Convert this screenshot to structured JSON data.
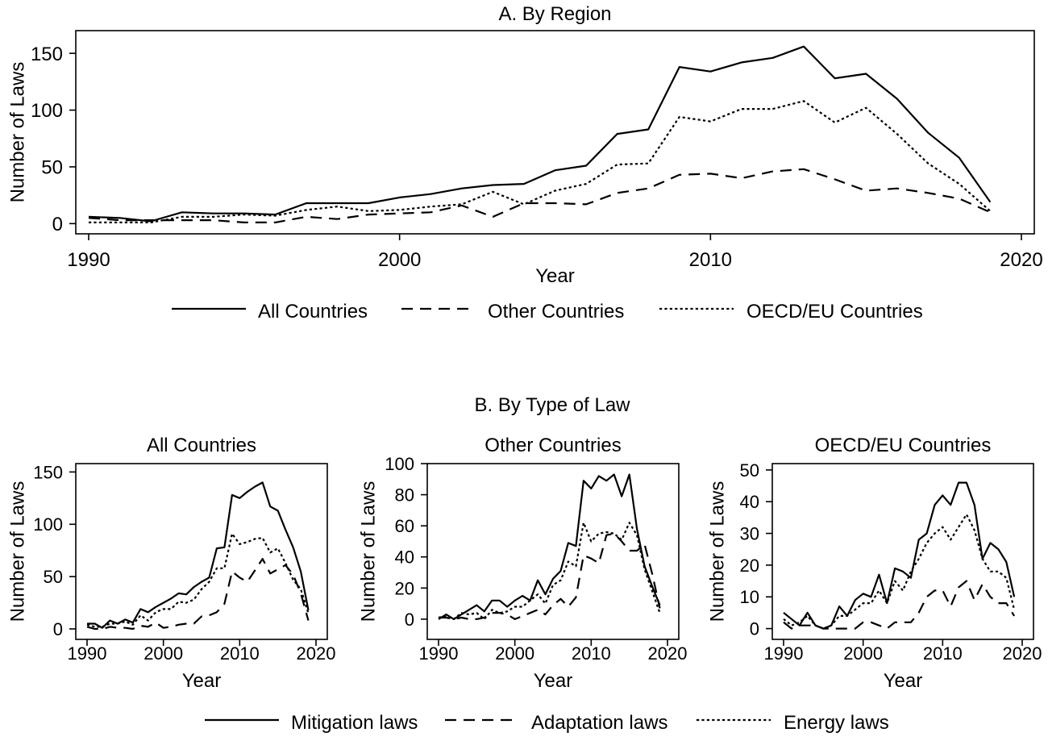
{
  "styles": {
    "solid": "",
    "dashed": "14 9",
    "dotted": "3.2 3.2"
  },
  "legend_a": [
    {
      "label": "All Countries",
      "style": "solid"
    },
    {
      "label": "Other Countries",
      "style": "dashed"
    },
    {
      "label": "OECD/EU Countries",
      "style": "dotted"
    }
  ],
  "legend_b": [
    {
      "label": "Mitigation laws",
      "style": "solid"
    },
    {
      "label": "Adaptation laws",
      "style": "dashed"
    },
    {
      "label": "Energy laws",
      "style": "dotted"
    }
  ],
  "section_b_title": "B. By Type of Law",
  "chart_data": [
    {
      "id": "by-region",
      "type": "line",
      "title": "A. By Region",
      "xlabel": "Year",
      "ylabel": "Number of Laws",
      "xlim": [
        1990,
        2020
      ],
      "xticks": [
        1990,
        2000,
        2010,
        2020
      ],
      "ylim": [
        -9,
        170
      ],
      "yticks": [
        0,
        50,
        100,
        150
      ],
      "x": [
        1990,
        1991,
        1992,
        1993,
        1994,
        1995,
        1996,
        1997,
        1998,
        1999,
        2000,
        2001,
        2002,
        2003,
        2004,
        2005,
        2006,
        2007,
        2008,
        2009,
        2010,
        2011,
        2012,
        2013,
        2014,
        2015,
        2016,
        2017,
        2018,
        2019
      ],
      "series": [
        {
          "name": "All Countries",
          "style": "solid",
          "values": [
            6,
            5,
            2,
            10,
            9,
            9,
            8,
            18,
            18,
            18,
            23,
            26,
            31,
            34,
            35,
            47,
            51,
            79,
            83,
            138,
            134,
            142,
            146,
            156,
            128,
            132,
            110,
            80,
            58,
            19
          ]
        },
        {
          "name": "Other Countries",
          "style": "dashed",
          "values": [
            5,
            3,
            3,
            3,
            3,
            1,
            1,
            6,
            4,
            8,
            9,
            10,
            16,
            6,
            18,
            18,
            17,
            27,
            31,
            43,
            44,
            40,
            46,
            48,
            39,
            29,
            31,
            27,
            22,
            10
          ]
        },
        {
          "name": "OECD/EU Countries",
          "style": "dotted",
          "values": [
            1,
            1,
            1,
            6,
            6,
            8,
            7,
            12,
            15,
            11,
            12,
            15,
            17,
            28,
            17,
            29,
            35,
            52,
            53,
            94,
            90,
            101,
            101,
            108,
            89,
            102,
            79,
            53,
            35,
            11
          ]
        }
      ]
    },
    {
      "id": "by-type-all",
      "type": "line",
      "title": "All Countries",
      "xlabel": "Year",
      "ylabel": "Number of Laws",
      "xlim": [
        1990,
        2020
      ],
      "xticks": [
        1990,
        2000,
        2010,
        2020
      ],
      "ylim": [
        -10,
        158
      ],
      "yticks": [
        0,
        50,
        100,
        150
      ],
      "x": [
        1990,
        1991,
        1992,
        1993,
        1994,
        1995,
        1996,
        1997,
        1998,
        1999,
        2000,
        2001,
        2002,
        2003,
        2004,
        2005,
        2006,
        2007,
        2008,
        2009,
        2010,
        2011,
        2012,
        2013,
        2014,
        2015,
        2016,
        2017,
        2018,
        2019
      ],
      "series": [
        {
          "name": "Mitigation laws",
          "style": "solid",
          "values": [
            5,
            5,
            1,
            8,
            5,
            9,
            6,
            19,
            16,
            21,
            25,
            29,
            34,
            33,
            40,
            45,
            49,
            77,
            78,
            128,
            125,
            131,
            136,
            140,
            117,
            113,
            95,
            78,
            55,
            18
          ]
        },
        {
          "name": "Adaptation laws",
          "style": "dashed",
          "values": [
            2,
            0,
            0,
            2,
            1,
            1,
            0,
            3,
            2,
            6,
            1,
            2,
            4,
            5,
            5,
            12,
            13,
            16,
            24,
            55,
            49,
            45,
            56,
            67,
            53,
            57,
            61,
            52,
            34,
            8
          ]
        },
        {
          "name": "Energy laws",
          "style": "dotted",
          "values": [
            4,
            2,
            2,
            5,
            5,
            7,
            4,
            13,
            8,
            16,
            19,
            19,
            26,
            25,
            28,
            38,
            45,
            58,
            58,
            91,
            81,
            83,
            86,
            87,
            73,
            77,
            63,
            47,
            38,
            15
          ]
        }
      ]
    },
    {
      "id": "by-type-other",
      "type": "line",
      "title": "Other Countries",
      "xlabel": "Year",
      "ylabel": "Number of Laws",
      "xlim": [
        1990,
        2020
      ],
      "xticks": [
        1990,
        2000,
        2010,
        2020
      ],
      "ylim": [
        -13,
        100
      ],
      "yticks": [
        0,
        20,
        40,
        60,
        80,
        100
      ],
      "x": [
        1990,
        1991,
        1992,
        1993,
        1994,
        1995,
        1996,
        1997,
        1998,
        1999,
        2000,
        2001,
        2002,
        2003,
        2004,
        2005,
        2006,
        2007,
        2008,
        2009,
        2010,
        2011,
        2012,
        2013,
        2014,
        2015,
        2016,
        2017,
        2018,
        2019
      ],
      "series": [
        {
          "name": "Mitigation laws",
          "style": "solid",
          "values": [
            0,
            3,
            0,
            3,
            6,
            9,
            5,
            12,
            12,
            8,
            12,
            15,
            12,
            25,
            16,
            26,
            31,
            49,
            47,
            89,
            84,
            92,
            89,
            93,
            79,
            93,
            58,
            34,
            21,
            9
          ]
        },
        {
          "name": "Adaptation laws",
          "style": "dashed",
          "values": [
            1,
            1,
            0,
            1,
            0,
            0,
            1,
            4,
            4,
            3,
            0,
            2,
            4,
            6,
            3,
            9,
            13,
            8,
            14,
            41,
            39,
            36,
            54,
            55,
            50,
            44,
            44,
            48,
            29,
            7
          ]
        },
        {
          "name": "Energy laws",
          "style": "dotted",
          "values": [
            1,
            2,
            0,
            4,
            3,
            4,
            0,
            6,
            4,
            5,
            8,
            8,
            12,
            16,
            10,
            22,
            25,
            37,
            34,
            62,
            50,
            55,
            56,
            55,
            51,
            62,
            54,
            32,
            18,
            4
          ]
        }
      ]
    },
    {
      "id": "by-type-oecd",
      "type": "line",
      "title": "OECD/EU Countries",
      "xlabel": "Year",
      "ylabel": "Number of Laws",
      "xlim": [
        1990,
        2020
      ],
      "xticks": [
        1990,
        2000,
        2010,
        2020
      ],
      "ylim": [
        -3.4,
        52
      ],
      "yticks": [
        0,
        10,
        20,
        30,
        40,
        50
      ],
      "x": [
        1990,
        1991,
        1992,
        1993,
        1994,
        1995,
        1996,
        1997,
        1998,
        1999,
        2000,
        2001,
        2002,
        2003,
        2004,
        2005,
        2006,
        2007,
        2008,
        2009,
        2010,
        2011,
        2012,
        2013,
        2014,
        2015,
        2016,
        2017,
        2018,
        2019
      ],
      "series": [
        {
          "name": "Mitigation laws",
          "style": "solid",
          "values": [
            5,
            3,
            1,
            5,
            1,
            0,
            1,
            7,
            4,
            9,
            11,
            10,
            17,
            8,
            19,
            18,
            16,
            28,
            30,
            39,
            42,
            39,
            46,
            46,
            39,
            22,
            27,
            25,
            21,
            10
          ]
        },
        {
          "name": "Adaptation laws",
          "style": "dashed",
          "values": [
            2,
            0,
            1,
            1,
            1,
            0,
            0,
            0,
            0,
            0,
            2,
            2,
            1,
            0,
            2,
            2,
            2,
            5,
            10,
            12,
            12,
            7,
            13,
            15,
            9,
            14,
            10,
            8,
            8,
            4
          ]
        },
        {
          "name": "Energy laws",
          "style": "dotted",
          "values": [
            3,
            1,
            2,
            4,
            1,
            0,
            1,
            4,
            4,
            6,
            8,
            8,
            12,
            8,
            15,
            12,
            18,
            22,
            27,
            30,
            32,
            28,
            32,
            36,
            31,
            22,
            18,
            18,
            16,
            6
          ]
        }
      ]
    }
  ]
}
